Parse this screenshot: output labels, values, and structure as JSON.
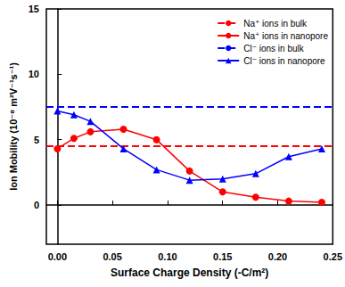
{
  "chart_data": {
    "type": "line",
    "x_label": "Surface Charge Density (-C/m²)",
    "y_label": "Ion Mobility (10⁻⁸ m²V⁻¹s⁻¹)",
    "xlim": [
      -0.01,
      0.25
    ],
    "xticks": [
      {
        "value": 0,
        "label": "0.00"
      },
      {
        "value": 0.05,
        "label": "0.05"
      },
      {
        "value": 0.1,
        "label": "0.10"
      },
      {
        "value": 0.15,
        "label": "0.15"
      },
      {
        "value": 0.2,
        "label": "0.20"
      },
      {
        "value": 0.25,
        "label": "0.25"
      }
    ],
    "ylim": [
      -3,
      15
    ],
    "yticks": [
      0,
      5,
      10,
      15
    ],
    "grid": false,
    "legend": "upper right",
    "series": [
      {
        "name": "Na⁺ ions in bulk",
        "type": "hline",
        "color": "#ff0000",
        "line_style": "dashed",
        "values": [
          4.5
        ]
      },
      {
        "name": "Na⁺ ions in nanopore",
        "type": "line",
        "color": "#ff0000",
        "line_style": "solid",
        "marker": "circle",
        "x": [
          0,
          0.015,
          0.03,
          0.06,
          0.09,
          0.12,
          0.15,
          0.18,
          0.21,
          0.24
        ],
        "values": [
          4.3,
          5.1,
          5.6,
          5.8,
          5.0,
          2.6,
          1.0,
          0.6,
          0.3,
          0.2
        ]
      },
      {
        "name": "Cl⁻ ions in bulk",
        "type": "hline",
        "color": "#0000ff",
        "line_style": "dashed",
        "values": [
          7.5
        ]
      },
      {
        "name": "Cl⁻ ions in nanopore",
        "type": "line",
        "color": "#0000ff",
        "line_style": "solid",
        "marker": "triangle",
        "x": [
          0,
          0.015,
          0.03,
          0.06,
          0.09,
          0.12,
          0.15,
          0.18,
          0.21,
          0.24
        ],
        "values": [
          7.2,
          6.9,
          6.4,
          4.3,
          2.7,
          1.9,
          2.0,
          2.4,
          3.7,
          4.3
        ]
      }
    ]
  }
}
